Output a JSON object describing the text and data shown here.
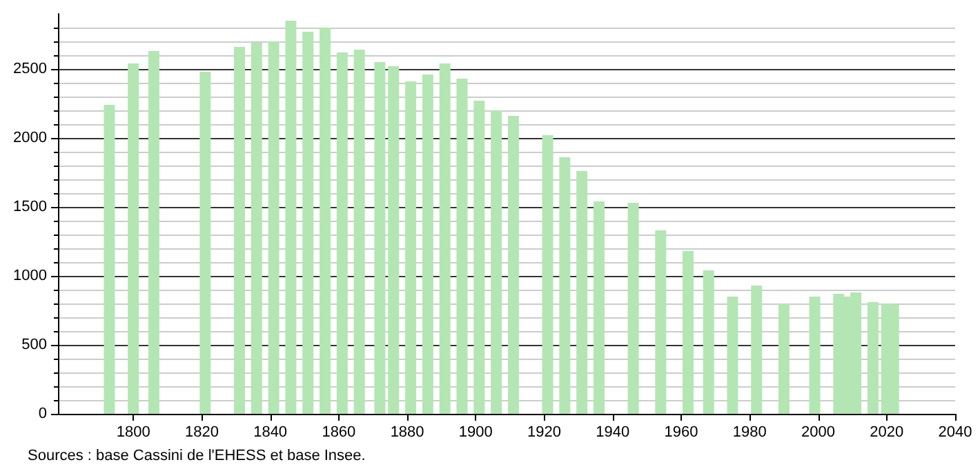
{
  "chart_data": {
    "type": "bar",
    "x": [
      1793,
      1800,
      1806,
      1821,
      1831,
      1836,
      1841,
      1846,
      1851,
      1856,
      1861,
      1866,
      1872,
      1876,
      1881,
      1886,
      1891,
      1896,
      1901,
      1906,
      1911,
      1921,
      1926,
      1931,
      1936,
      1946,
      1954,
      1962,
      1968,
      1975,
      1982,
      1990,
      1999,
      2006,
      2008,
      2011,
      2016,
      2020,
      2022
    ],
    "values": [
      2240,
      2540,
      2630,
      2480,
      2660,
      2690,
      2700,
      2850,
      2770,
      2800,
      2620,
      2640,
      2550,
      2520,
      2410,
      2460,
      2540,
      2430,
      2270,
      2200,
      2160,
      2020,
      1860,
      1760,
      1540,
      1530,
      1330,
      1180,
      1040,
      850,
      930,
      800,
      850,
      870,
      850,
      880,
      810,
      800,
      790
    ],
    "color": "#b3e6b3",
    "xlim": [
      1778,
      2040
    ],
    "xticks": [
      1800,
      1820,
      1840,
      1860,
      1880,
      1900,
      1920,
      1940,
      1960,
      1980,
      2000,
      2020,
      2040
    ],
    "ylim": [
      0,
      2900
    ],
    "yticks": [
      0,
      500,
      1000,
      1500,
      2000,
      2500
    ],
    "grid": "y",
    "annotations": [
      "Sources : base Cassini de l'EHESS et base Insee."
    ]
  }
}
